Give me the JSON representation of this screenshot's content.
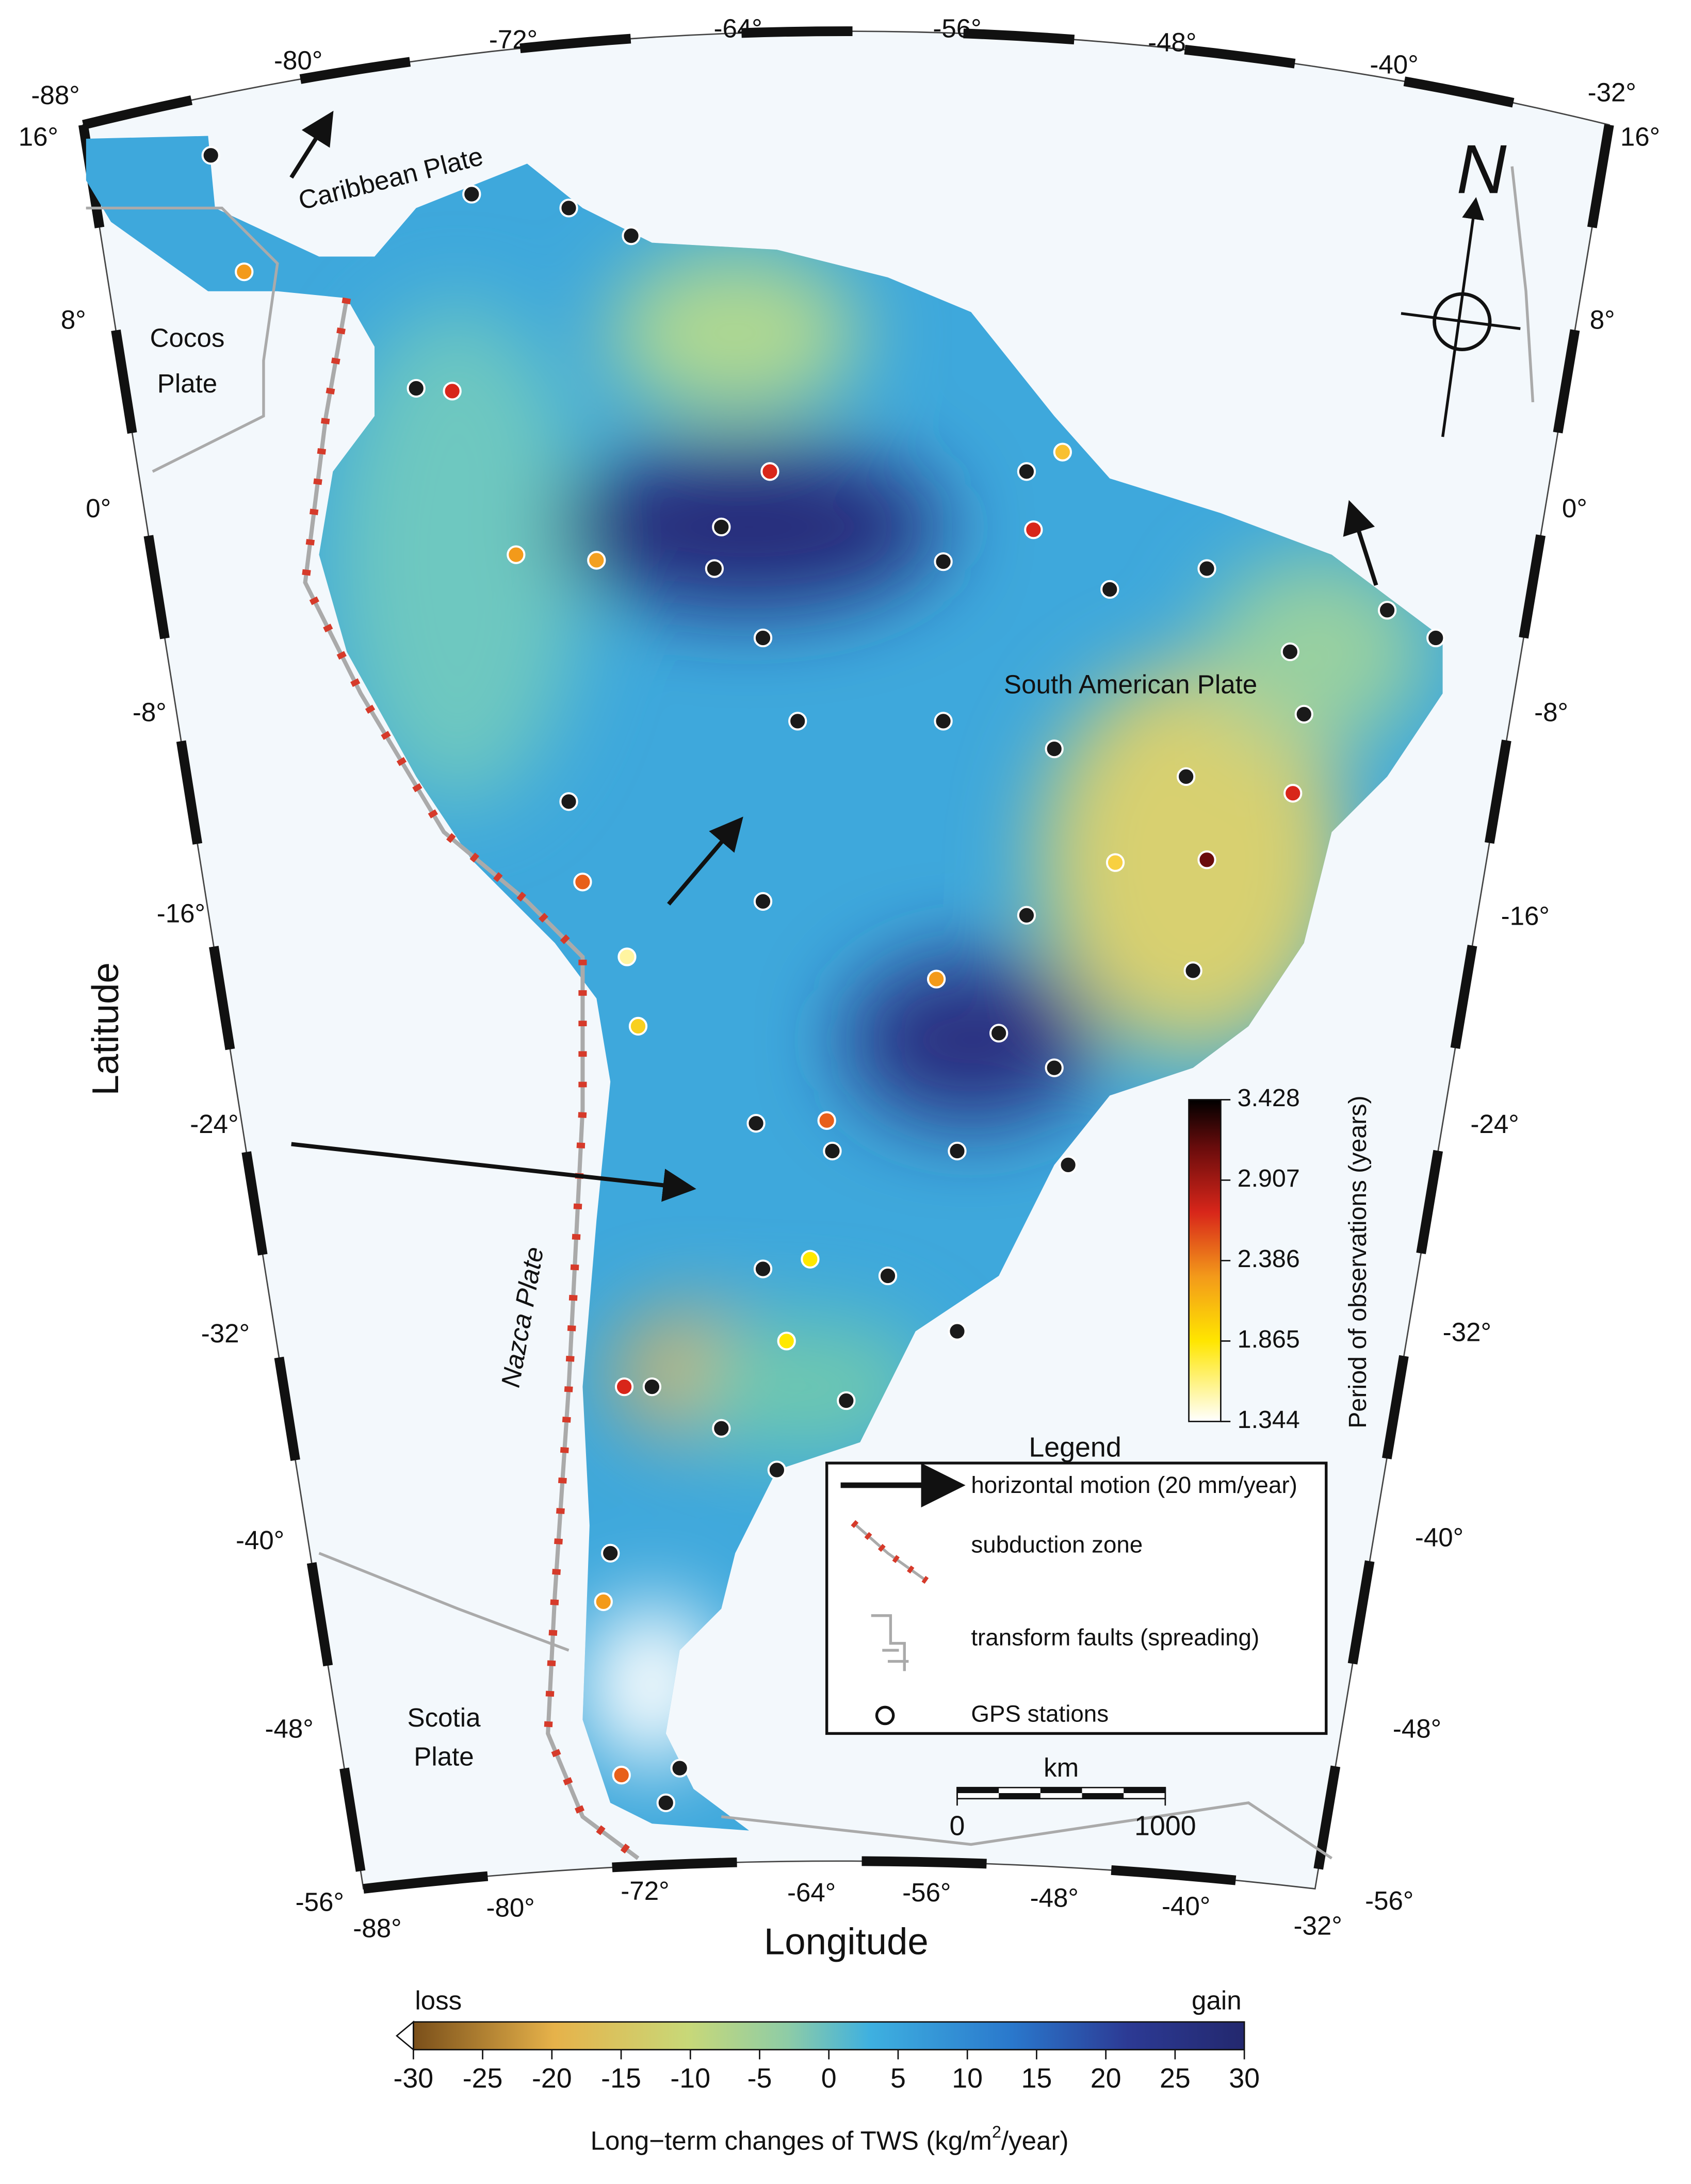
{
  "axes": {
    "x_label": "Longitude",
    "y_label": "Latitude",
    "top_lon_labels": [
      "-88°",
      "-80°",
      "-72°",
      "-64°",
      "-56°",
      "-48°",
      "-40°",
      "-32°"
    ],
    "bottom_lon_labels": [
      "-88°",
      "-80°",
      "-72°",
      "-64°",
      "-56°",
      "-48°",
      "-40°",
      "-32°"
    ],
    "left_lat_labels": [
      "16°",
      "8°",
      "0°",
      "-8°",
      "-16°",
      "-24°",
      "-32°",
      "-40°",
      "-48°",
      "-56°"
    ],
    "right_lat_labels": [
      "16°",
      "8°",
      "0°",
      "-8°",
      "-16°",
      "-24°",
      "-32°",
      "-40°",
      "-48°",
      "-56°"
    ]
  },
  "plates": {
    "caribbean": "Caribbean Plate",
    "cocos": [
      "Cocos",
      "Plate"
    ],
    "south_american": "South American Plate",
    "nazca": "Nazca Plate",
    "scotia": [
      "Scotia",
      "Plate"
    ]
  },
  "north": "N",
  "legend": {
    "title": "Legend",
    "items": [
      "horizontal motion (20 mm/year)",
      "subduction zone",
      "transform faults (spreading)",
      "GPS stations"
    ]
  },
  "scale_bar": {
    "unit": "km",
    "ticks": [
      0,
      1000
    ]
  },
  "period_colorbar": {
    "label": "Period of observations (years)",
    "ticks": [
      1.344,
      1.865,
      2.386,
      2.907,
      3.428
    ]
  },
  "tws_colorbar": {
    "low": "loss",
    "high": "gain",
    "ticks": [
      -30,
      -25,
      -20,
      -15,
      -10,
      -5,
      0,
      5,
      10,
      15,
      20,
      25,
      30
    ],
    "label": [
      "Long−term changes of TWS (kg/m",
      "2",
      "/year)"
    ]
  }
}
